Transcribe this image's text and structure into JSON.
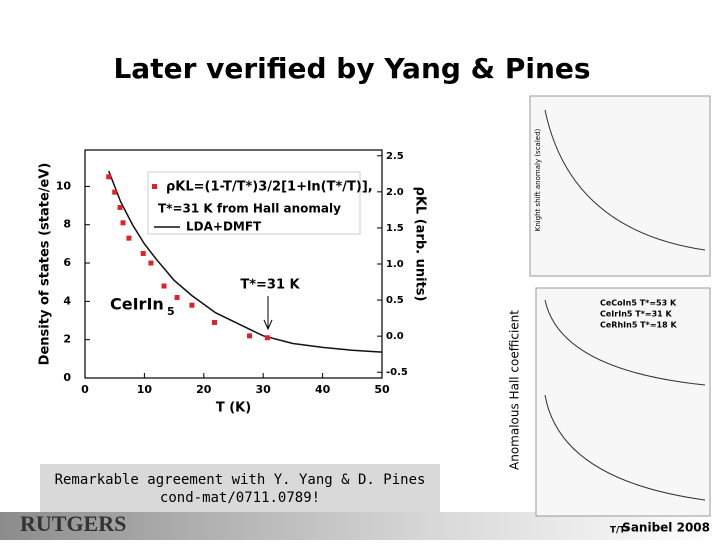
{
  "title": "Later verified by Yang & Pines",
  "chart_data": {
    "type": "scatter",
    "xlabel": "T (K)",
    "ylabel": "Density of states (state/eV)",
    "y2label": "ρKL (arb. units)",
    "xlim": [
      0,
      50
    ],
    "xticks": [
      0,
      10,
      20,
      30,
      40,
      50
    ],
    "ylim": [
      0,
      11.9
    ],
    "yticks": [
      0,
      2,
      4,
      6,
      8,
      10
    ],
    "y2lim": [
      -0.58,
      2.58
    ],
    "y2ticks": [
      -0.5,
      {
        "value": 0,
        "label": "0.0"
      },
      0.5,
      {
        "value": 1,
        "label": "1.0"
      },
      1.5,
      {
        "value": 2,
        "label": "2.0"
      },
      2.5
    ],
    "series": [
      {
        "name": "ρKL=(1-T/T*)3/2[1+ln(T*/T)],",
        "color": "#e0202a",
        "x": [
          4,
          5,
          5.9,
          6.4,
          7.4,
          9.8,
          11.1,
          13.3,
          15.5,
          18,
          21.8,
          27.7,
          30.7
        ],
        "values": [
          10.5,
          9.7,
          8.9,
          8.1,
          7.3,
          6.5,
          6.0,
          4.8,
          4.2,
          3.8,
          2.9,
          2.2,
          2.1
        ]
      },
      {
        "name": "LDA+DMFT",
        "color": "#111111",
        "x": [
          4,
          6,
          8,
          10,
          12,
          15,
          18,
          22,
          26,
          30,
          35,
          40,
          45,
          50
        ],
        "values": [
          10.8,
          9.2,
          8.0,
          7.0,
          6.2,
          5.1,
          4.3,
          3.4,
          2.8,
          2.2,
          1.8,
          1.6,
          1.45,
          1.35
        ]
      }
    ],
    "legend_note": "T*=31 K from Hall anomaly",
    "annotation": "T*=31 K",
    "compound": "CeIrIn",
    "compound_sub": "5"
  },
  "side_figure": {
    "ylabel": "Anomalous Hall coefficient",
    "top_ylabel": "Knight shift anomaly (scaled)",
    "legend": [
      "CeCoIn5  T*=53 K",
      "CeIrIn5  T*=31 K",
      "CeRhIn5  T*=18 K"
    ],
    "xlabel": "T/T*"
  },
  "caption": [
    "Remarkable agreement with Y. Yang & D. Pines",
    "cond-mat/0711.0789!"
  ],
  "footer": {
    "logo": "RUTGERS",
    "venue": "Sanibel 2008"
  }
}
